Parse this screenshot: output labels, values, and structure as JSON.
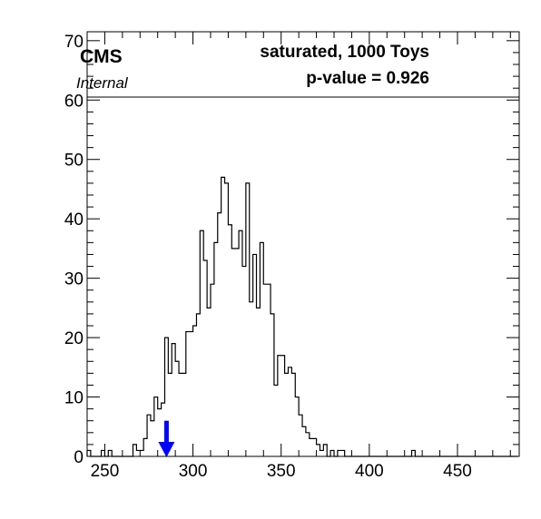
{
  "chart_data": {
    "type": "histogram",
    "title": "",
    "xlabel": "",
    "ylabel": "",
    "xlim": [
      240,
      485
    ],
    "ylim": [
      0,
      71.5
    ],
    "x_ticks": [
      250,
      300,
      350,
      400,
      450
    ],
    "y_ticks": [
      0,
      10,
      20,
      30,
      40,
      50,
      60,
      70
    ],
    "bin_start": 240,
    "bin_width": 2,
    "counts": [
      1,
      0,
      0,
      0,
      1,
      0,
      1,
      0,
      0,
      0,
      0,
      0,
      0,
      2,
      1,
      1,
      3,
      7,
      6,
      10,
      8,
      9,
      20,
      14,
      19,
      16,
      14,
      14,
      21,
      21,
      22,
      24,
      38,
      33,
      25,
      29,
      36,
      41,
      47,
      46,
      39,
      35,
      35,
      38,
      32,
      46,
      26,
      34,
      25,
      36,
      29,
      29,
      24,
      12,
      17,
      17,
      14,
      15,
      14,
      10,
      7,
      5,
      4,
      3,
      3,
      2,
      1,
      2,
      0,
      1,
      0,
      1,
      1,
      0,
      0,
      0,
      0,
      0,
      0,
      0,
      0,
      0,
      0,
      0,
      0,
      0,
      0,
      0,
      0,
      0,
      0,
      0,
      1,
      0,
      0,
      0,
      0,
      0,
      0,
      0,
      0,
      0,
      0,
      0,
      0,
      0,
      0,
      0,
      0,
      0,
      0,
      0,
      0,
      0,
      0,
      0,
      0,
      0,
      0,
      0,
      0,
      0
    ],
    "observed_marker": {
      "x": 285,
      "color": "#0000ff"
    },
    "legend_box_bottom_y": 60.5
  },
  "labels": {
    "experiment": "CMS",
    "status": "Internal",
    "test_line": "saturated, 1000 Toys",
    "pvalue_line": "p-value = 0.926"
  },
  "colors": {
    "histogram": "#000000",
    "marker": "#0000ff",
    "frame": "#000000"
  }
}
